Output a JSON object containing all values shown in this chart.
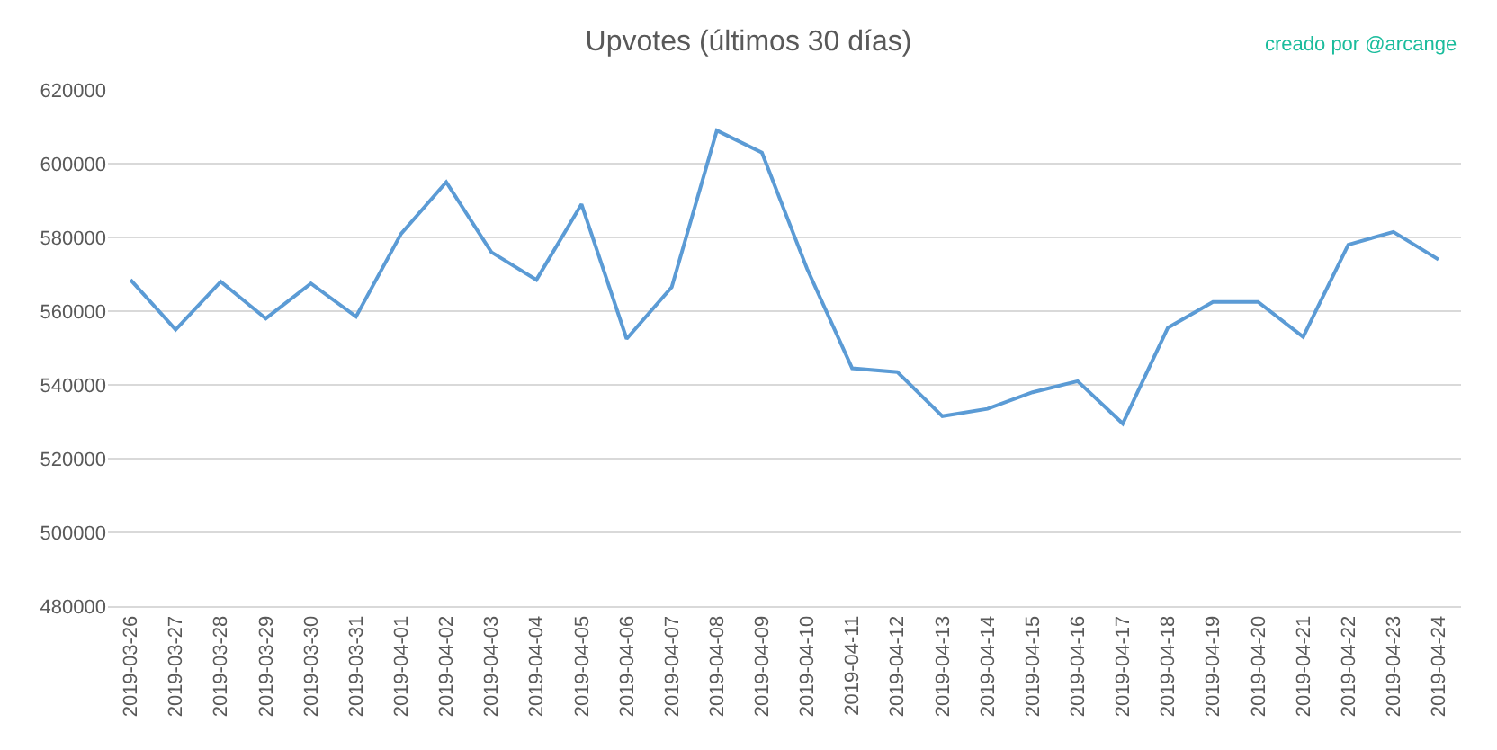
{
  "chart_data": {
    "type": "line",
    "title": "Upvotes (últimos 30 días)",
    "annotations": [
      "creado por @arcange"
    ],
    "categories": [
      "2019-03-26",
      "2019-03-27",
      "2019-03-28",
      "2019-03-29",
      "2019-03-30",
      "2019-03-31",
      "2019-04-01",
      "2019-04-02",
      "2019-04-03",
      "2019-04-04",
      "2019-04-05",
      "2019-04-06",
      "2019-04-07",
      "2019-04-08",
      "2019-04-09",
      "2019-04-10",
      "2019-04-11",
      "2019-04-12",
      "2019-04-13",
      "2019-04-14",
      "2019-04-15",
      "2019-04-16",
      "2019-04-17",
      "2019-04-18",
      "2019-04-19",
      "2019-04-20",
      "2019-04-21",
      "2019-04-22",
      "2019-04-23",
      "2019-04-24"
    ],
    "series": [
      {
        "color": "#5b9bd5",
        "values": [
          568500,
          555000,
          568000,
          558000,
          567500,
          558500,
          581000,
          595000,
          576000,
          568500,
          589000,
          552500,
          566500,
          609000,
          603000,
          571500,
          544500,
          543500,
          531500,
          533500,
          538000,
          541000,
          529500,
          555500,
          562500,
          562500,
          553000,
          578000,
          581500,
          574000
        ]
      }
    ],
    "ylim": [
      480000,
      620000
    ],
    "yticks": [
      480000,
      500000,
      520000,
      540000,
      560000,
      580000,
      600000,
      620000
    ],
    "grid": "y",
    "marker": "none",
    "line_style": "solid"
  }
}
